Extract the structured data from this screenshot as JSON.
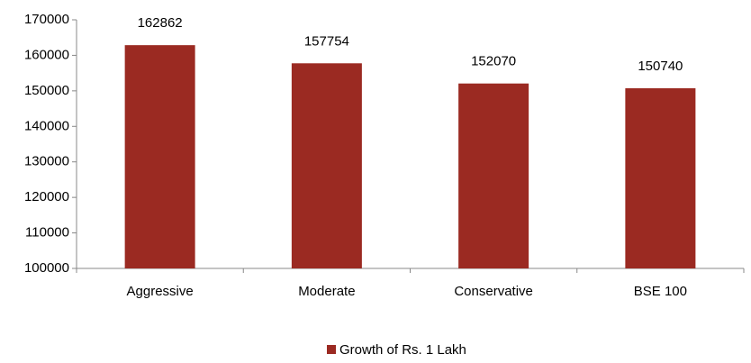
{
  "chart_data": {
    "type": "bar",
    "categories": [
      "Aggressive",
      "Moderate",
      "Conservative",
      "BSE 100"
    ],
    "series": [
      {
        "name": "Growth of Rs. 1 Lakh",
        "color": "#9b2a22",
        "values": [
          162862,
          157754,
          152070,
          150740
        ]
      }
    ],
    "ylim": [
      100000,
      170000
    ],
    "yticks": [
      100000,
      110000,
      120000,
      130000,
      140000,
      150000,
      160000,
      170000
    ],
    "grid": false,
    "legend": "bottom"
  }
}
